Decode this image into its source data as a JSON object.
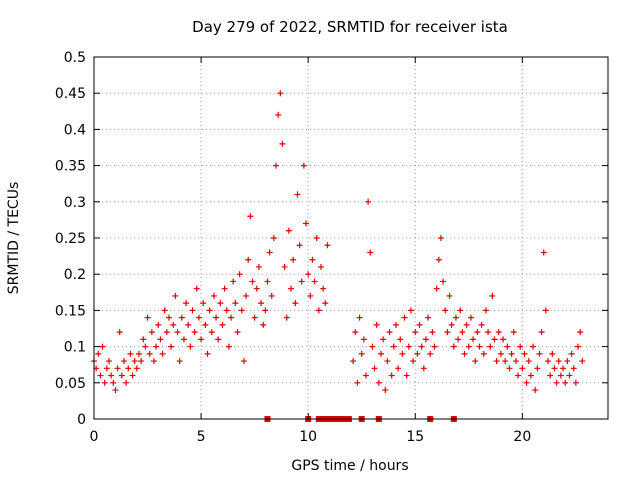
{
  "chart_data": {
    "type": "scatter",
    "title": "Day 279 of 2022, SRMTID for receiver ista",
    "xlabel": "GPS time / hours",
    "ylabel": "SRMTID / TECUs",
    "xlim": [
      0,
      24
    ],
    "ylim": [
      0,
      0.5
    ],
    "xticks": [
      0,
      5,
      10,
      15,
      20
    ],
    "xtick_labels": [
      "0",
      "5",
      "10",
      "15",
      "20"
    ],
    "yticks": [
      0,
      0.05,
      0.1,
      0.15,
      0.2,
      0.25,
      0.3,
      0.35,
      0.4,
      0.45,
      0.5
    ],
    "ytick_labels": [
      "0",
      "0.05",
      "0.1",
      "0.15",
      "0.2",
      "0.25",
      "0.3",
      "0.35",
      "0.4",
      "0.45",
      "0.5"
    ],
    "grid": true,
    "color": "#e00000",
    "marker": "plus",
    "series": [
      {
        "points": [
          [
            0.0,
            0.08
          ],
          [
            0.1,
            0.07
          ],
          [
            0.2,
            0.09
          ],
          [
            0.3,
            0.06
          ],
          [
            0.4,
            0.1
          ],
          [
            0.5,
            0.05
          ],
          [
            0.6,
            0.07
          ],
          [
            0.7,
            0.08
          ],
          [
            0.8,
            0.06
          ],
          [
            0.9,
            0.05
          ],
          [
            1.0,
            0.04
          ],
          [
            1.1,
            0.07
          ],
          [
            1.2,
            0.12
          ],
          [
            1.3,
            0.06
          ],
          [
            1.4,
            0.08
          ],
          [
            1.5,
            0.05
          ],
          [
            1.6,
            0.07
          ],
          [
            1.7,
            0.09
          ],
          [
            1.8,
            0.06
          ],
          [
            1.9,
            0.08
          ],
          [
            2.0,
            0.07
          ],
          [
            2.1,
            0.09
          ],
          [
            2.2,
            0.08
          ],
          [
            2.3,
            0.11
          ],
          [
            2.4,
            0.1
          ],
          [
            2.5,
            0.14
          ],
          [
            2.6,
            0.09
          ],
          [
            2.7,
            0.12
          ],
          [
            2.8,
            0.08
          ],
          [
            2.9,
            0.1
          ],
          [
            3.0,
            0.13
          ],
          [
            3.1,
            0.11
          ],
          [
            3.2,
            0.09
          ],
          [
            3.3,
            0.15
          ],
          [
            3.4,
            0.12
          ],
          [
            3.5,
            0.14
          ],
          [
            3.6,
            0.1
          ],
          [
            3.7,
            0.13
          ],
          [
            3.8,
            0.17
          ],
          [
            3.9,
            0.12
          ],
          [
            4.0,
            0.08
          ],
          [
            4.1,
            0.14
          ],
          [
            4.2,
            0.11
          ],
          [
            4.3,
            0.16
          ],
          [
            4.4,
            0.13
          ],
          [
            4.5,
            0.1
          ],
          [
            4.6,
            0.15
          ],
          [
            4.7,
            0.12
          ],
          [
            4.8,
            0.18
          ],
          [
            4.9,
            0.14
          ],
          [
            5.0,
            0.11
          ],
          [
            5.1,
            0.16
          ],
          [
            5.2,
            0.13
          ],
          [
            5.3,
            0.09
          ],
          [
            5.4,
            0.15
          ],
          [
            5.5,
            0.12
          ],
          [
            5.6,
            0.17
          ],
          [
            5.7,
            0.14
          ],
          [
            5.8,
            0.11
          ],
          [
            5.9,
            0.16
          ],
          [
            6.0,
            0.13
          ],
          [
            6.1,
            0.18
          ],
          [
            6.2,
            0.15
          ],
          [
            6.3,
            0.1
          ],
          [
            6.4,
            0.14
          ],
          [
            6.5,
            0.19
          ],
          [
            6.6,
            0.16
          ],
          [
            6.7,
            0.12
          ],
          [
            6.8,
            0.2
          ],
          [
            6.9,
            0.15
          ],
          [
            7.0,
            0.08
          ],
          [
            7.1,
            0.17
          ],
          [
            7.2,
            0.22
          ],
          [
            7.3,
            0.28
          ],
          [
            7.4,
            0.19
          ],
          [
            7.5,
            0.14
          ],
          [
            7.6,
            0.18
          ],
          [
            7.7,
            0.21
          ],
          [
            7.8,
            0.16
          ],
          [
            7.9,
            0.13
          ],
          [
            8.0,
            0.15
          ],
          [
            8.1,
            0.19
          ],
          [
            8.2,
            0.23
          ],
          [
            8.3,
            0.17
          ],
          [
            8.4,
            0.25
          ],
          [
            8.5,
            0.35
          ],
          [
            8.6,
            0.42
          ],
          [
            8.7,
            0.45
          ],
          [
            8.8,
            0.38
          ],
          [
            8.9,
            0.21
          ],
          [
            9.0,
            0.14
          ],
          [
            9.1,
            0.26
          ],
          [
            9.2,
            0.18
          ],
          [
            9.3,
            0.22
          ],
          [
            9.4,
            0.16
          ],
          [
            9.5,
            0.31
          ],
          [
            9.6,
            0.24
          ],
          [
            9.7,
            0.19
          ],
          [
            9.8,
            0.35
          ],
          [
            9.9,
            0.27
          ],
          [
            10.0,
            0.2
          ],
          [
            10.1,
            0.17
          ],
          [
            10.2,
            0.22
          ],
          [
            10.3,
            0.19
          ],
          [
            10.4,
            0.25
          ],
          [
            10.5,
            0.15
          ],
          [
            10.6,
            0.21
          ],
          [
            10.7,
            0.18
          ],
          [
            10.8,
            0.16
          ],
          [
            10.9,
            0.24
          ],
          [
            12.1,
            0.08
          ],
          [
            12.2,
            0.12
          ],
          [
            12.3,
            0.05
          ],
          [
            12.4,
            0.14
          ],
          [
            12.5,
            0.09
          ],
          [
            12.6,
            0.11
          ],
          [
            12.7,
            0.06
          ],
          [
            12.8,
            0.3
          ],
          [
            12.9,
            0.23
          ],
          [
            13.0,
            0.1
          ],
          [
            13.1,
            0.07
          ],
          [
            13.2,
            0.13
          ],
          [
            13.3,
            0.05
          ],
          [
            13.4,
            0.09
          ],
          [
            13.5,
            0.11
          ],
          [
            13.6,
            0.04
          ],
          [
            13.7,
            0.08
          ],
          [
            13.8,
            0.12
          ],
          [
            13.9,
            0.06
          ],
          [
            14.0,
            0.1
          ],
          [
            14.1,
            0.13
          ],
          [
            14.2,
            0.07
          ],
          [
            14.3,
            0.11
          ],
          [
            14.4,
            0.09
          ],
          [
            14.5,
            0.14
          ],
          [
            14.6,
            0.06
          ],
          [
            14.7,
            0.1
          ],
          [
            14.8,
            0.15
          ],
          [
            14.9,
            0.08
          ],
          [
            15.0,
            0.12
          ],
          [
            15.1,
            0.09
          ],
          [
            15.2,
            0.13
          ],
          [
            15.3,
            0.1
          ],
          [
            15.4,
            0.07
          ],
          [
            15.5,
            0.11
          ],
          [
            15.6,
            0.14
          ],
          [
            15.7,
            0.09
          ],
          [
            15.8,
            0.12
          ],
          [
            15.9,
            0.1
          ],
          [
            16.0,
            0.18
          ],
          [
            16.1,
            0.22
          ],
          [
            16.2,
            0.25
          ],
          [
            16.3,
            0.19
          ],
          [
            16.4,
            0.15
          ],
          [
            16.5,
            0.12
          ],
          [
            16.6,
            0.17
          ],
          [
            16.7,
            0.13
          ],
          [
            16.8,
            0.1
          ],
          [
            16.9,
            0.14
          ],
          [
            17.0,
            0.11
          ],
          [
            17.1,
            0.15
          ],
          [
            17.2,
            0.12
          ],
          [
            17.3,
            0.09
          ],
          [
            17.4,
            0.13
          ],
          [
            17.5,
            0.1
          ],
          [
            17.6,
            0.14
          ],
          [
            17.7,
            0.11
          ],
          [
            17.8,
            0.08
          ],
          [
            17.9,
            0.12
          ],
          [
            18.0,
            0.1
          ],
          [
            18.1,
            0.13
          ],
          [
            18.2,
            0.09
          ],
          [
            18.3,
            0.15
          ],
          [
            18.4,
            0.12
          ],
          [
            18.5,
            0.1
          ],
          [
            18.6,
            0.17
          ],
          [
            18.7,
            0.11
          ],
          [
            18.8,
            0.08
          ],
          [
            18.9,
            0.12
          ],
          [
            19.0,
            0.09
          ],
          [
            19.1,
            0.11
          ],
          [
            19.2,
            0.08
          ],
          [
            19.3,
            0.1
          ],
          [
            19.4,
            0.07
          ],
          [
            19.5,
            0.09
          ],
          [
            19.6,
            0.12
          ],
          [
            19.7,
            0.08
          ],
          [
            19.8,
            0.06
          ],
          [
            19.9,
            0.1
          ],
          [
            20.0,
            0.07
          ],
          [
            20.1,
            0.09
          ],
          [
            20.2,
            0.05
          ],
          [
            20.3,
            0.08
          ],
          [
            20.4,
            0.06
          ],
          [
            20.5,
            0.1
          ],
          [
            20.6,
            0.04
          ],
          [
            20.7,
            0.07
          ],
          [
            20.8,
            0.09
          ],
          [
            20.9,
            0.12
          ],
          [
            21.0,
            0.23
          ],
          [
            21.1,
            0.15
          ],
          [
            21.2,
            0.08
          ],
          [
            21.3,
            0.06
          ],
          [
            21.4,
            0.09
          ],
          [
            21.5,
            0.07
          ],
          [
            21.6,
            0.05
          ],
          [
            21.7,
            0.08
          ],
          [
            21.8,
            0.06
          ],
          [
            21.9,
            0.07
          ],
          [
            22.0,
            0.05
          ],
          [
            22.1,
            0.08
          ],
          [
            22.2,
            0.06
          ],
          [
            22.3,
            0.09
          ],
          [
            22.4,
            0.07
          ],
          [
            22.5,
            0.05
          ],
          [
            22.6,
            0.1
          ],
          [
            22.7,
            0.12
          ],
          [
            22.8,
            0.08
          ]
        ]
      }
    ],
    "zero_bar_hours": [
      8.1,
      10.0,
      10.5,
      10.7,
      10.9,
      11.1,
      11.3,
      11.5,
      11.7,
      11.9,
      12.5,
      13.3,
      15.7,
      16.8
    ]
  }
}
